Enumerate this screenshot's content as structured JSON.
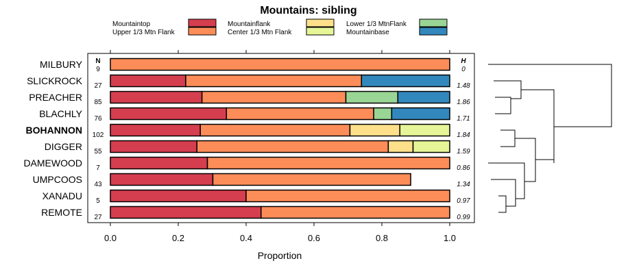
{
  "chart_data": {
    "type": "bar",
    "stacked": true,
    "orientation": "horizontal",
    "title": "Mountains: sibling",
    "xlabel": "Proportion",
    "ylabel": "",
    "xlim": [
      0,
      1
    ],
    "xticks": [
      "0.0",
      "0.2",
      "0.4",
      "0.6",
      "0.8",
      "1.0"
    ],
    "xtick_values": [
      0,
      0.2,
      0.4,
      0.6,
      0.8,
      1.0
    ],
    "n_header": "N",
    "h_header": "H",
    "legend": [
      {
        "name": "Mountaintop",
        "color": "#d53e4f"
      },
      {
        "name": "Upper 1/3 Mtn Flank",
        "color": "#fc8d59"
      },
      {
        "name": "Mountainflank",
        "color": "#fee08b"
      },
      {
        "name": "Center 1/3 Mtn Flank",
        "color": "#e6f598"
      },
      {
        "name": "Lower 1/3 MtnFlank",
        "color": "#99d594"
      },
      {
        "name": "Mountainbase",
        "color": "#3288bd"
      }
    ],
    "categories": [
      "MILBURY",
      "SLICKROCK",
      "PREACHER",
      "BLACHLY",
      "BOHANNON",
      "DIGGER",
      "DAMEWOOD",
      "UMPCOOS",
      "XANADU",
      "REMOTE"
    ],
    "highlight": "BOHANNON",
    "n": [
      "9",
      "27",
      "85",
      "76",
      "102",
      "55",
      "7",
      "43",
      "5",
      "27"
    ],
    "h": [
      "0",
      "1.48",
      "1.86",
      "1.71",
      "1.84",
      "1.59",
      "0.86",
      "1.34",
      "0.97",
      "0.99"
    ],
    "series": [
      {
        "name": "Mountaintop",
        "values": [
          0.0,
          0.222,
          0.27,
          0.342,
          0.265,
          0.255,
          0.286,
          0.302,
          0.4,
          0.444
        ]
      },
      {
        "name": "Upper 1/3 Mtn Flank",
        "values": [
          1.0,
          0.518,
          0.424,
          0.434,
          0.441,
          0.564,
          0.714,
          0.583,
          0.6,
          0.556
        ]
      },
      {
        "name": "Mountainflank",
        "values": [
          0,
          0,
          0,
          0,
          0.147,
          0.073,
          0,
          0,
          0,
          0
        ]
      },
      {
        "name": "Center 1/3 Mtn Flank",
        "values": [
          0,
          0,
          0,
          0,
          0.147,
          0.108,
          0,
          0,
          0,
          0
        ]
      },
      {
        "name": "Lower 1/3 MtnFlank",
        "values": [
          0,
          0,
          0.153,
          0.053,
          0,
          0,
          0,
          0,
          0,
          0
        ]
      },
      {
        "name": "Mountainbase",
        "values": [
          0,
          0.26,
          0.153,
          0.171,
          0,
          0,
          0,
          0,
          0,
          0
        ]
      }
    ]
  }
}
